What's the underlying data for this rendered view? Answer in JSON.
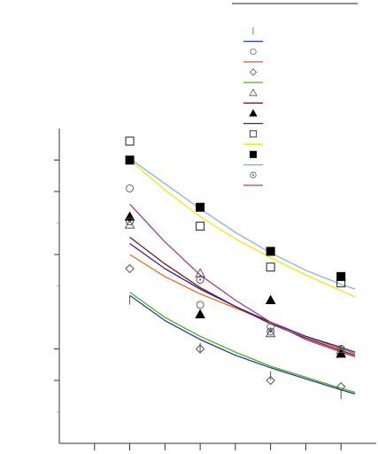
{
  "chart_data": {
    "type": "scatter",
    "title": "",
    "xlabel": "",
    "ylabel": "",
    "x_categories": [
      "",
      "",
      "",
      ""
    ],
    "xlim": [
      0,
      4.5
    ],
    "ylim": [
      0,
      10
    ],
    "grid": false,
    "legend_placement": "top-right",
    "series": [
      {
        "kind": "points",
        "marker": "vline",
        "color": "#555555",
        "points": [
          [
            1,
            4.55
          ],
          [
            2,
            3.05
          ],
          [
            3,
            2.15
          ],
          [
            4,
            1.55
          ]
        ]
      },
      {
        "kind": "fit",
        "color": "#1f3f99",
        "points": [
          [
            1,
            4.7
          ],
          [
            1.5,
            3.9
          ],
          [
            2,
            3.3
          ],
          [
            2.5,
            2.8
          ],
          [
            3,
            2.4
          ],
          [
            3.5,
            2.05
          ],
          [
            4,
            1.7
          ],
          [
            4.2,
            1.57
          ]
        ]
      },
      {
        "kind": "points",
        "marker": "circle",
        "color": "#666666",
        "points": [
          [
            1,
            8.1
          ],
          [
            2,
            4.4
          ],
          [
            3,
            3.7
          ],
          [
            4,
            3.0
          ]
        ]
      },
      {
        "kind": "fit",
        "color": "#e06b1f",
        "points": [
          [
            1,
            6.0
          ],
          [
            1.5,
            5.3
          ],
          [
            2,
            4.75
          ],
          [
            2.5,
            4.3
          ],
          [
            3,
            3.85
          ],
          [
            3.5,
            3.4
          ],
          [
            4,
            3.0
          ],
          [
            4.2,
            2.85
          ]
        ]
      },
      {
        "kind": "points",
        "marker": "diamond",
        "color": "#555555",
        "points": [
          [
            1,
            5.55
          ],
          [
            2,
            3.0
          ],
          [
            3,
            2.0
          ],
          [
            4,
            1.8
          ]
        ]
      },
      {
        "kind": "fit",
        "color": "#4cae1e",
        "points": [
          [
            1,
            4.8
          ],
          [
            1.5,
            4.0
          ],
          [
            2,
            3.4
          ],
          [
            2.5,
            2.9
          ],
          [
            3,
            2.45
          ],
          [
            3.5,
            2.1
          ],
          [
            4,
            1.75
          ],
          [
            4.2,
            1.62
          ]
        ]
      },
      {
        "kind": "points",
        "marker": "triangle",
        "color": "#555555",
        "points": [
          [
            1,
            6.95
          ],
          [
            2,
            5.4
          ],
          [
            3,
            3.5
          ],
          [
            4,
            2.95
          ]
        ]
      },
      {
        "kind": "fit",
        "color": "#6b1f1f",
        "points": [
          [
            1,
            6.55
          ],
          [
            1.5,
            5.7
          ],
          [
            2,
            4.95
          ],
          [
            2.5,
            4.35
          ],
          [
            3,
            3.8
          ],
          [
            3.5,
            3.35
          ],
          [
            4,
            2.95
          ],
          [
            4.2,
            2.8
          ]
        ]
      },
      {
        "kind": "points",
        "marker": "triangle-filled",
        "color": "#000000",
        "points": [
          [
            1,
            7.2
          ],
          [
            2,
            4.1
          ],
          [
            3,
            4.55
          ],
          [
            4,
            2.85
          ]
        ]
      },
      {
        "kind": "fit",
        "color": "#3a1f8c",
        "points": [
          [
            1,
            6.35
          ],
          [
            1.5,
            5.55
          ],
          [
            2,
            4.9
          ],
          [
            2.5,
            4.35
          ],
          [
            3,
            3.85
          ],
          [
            3.5,
            3.4
          ],
          [
            4,
            3.05
          ],
          [
            4.2,
            2.9
          ]
        ]
      },
      {
        "kind": "points",
        "marker": "square",
        "color": "#222222",
        "points": [
          [
            1,
            9.6
          ],
          [
            2,
            6.9
          ],
          [
            3,
            5.6
          ],
          [
            4,
            5.1
          ]
        ]
      },
      {
        "kind": "fit",
        "color": "#f5e21a",
        "points": [
          [
            1,
            9.0
          ],
          [
            1.5,
            8.05
          ],
          [
            2,
            7.2
          ],
          [
            2.5,
            6.5
          ],
          [
            3,
            5.9
          ],
          [
            3.5,
            5.35
          ],
          [
            4,
            4.85
          ],
          [
            4.2,
            4.65
          ]
        ]
      },
      {
        "kind": "points",
        "marker": "square-filled",
        "color": "#000000",
        "points": [
          [
            1,
            9.0
          ],
          [
            2,
            7.5
          ],
          [
            3,
            6.1
          ],
          [
            4,
            5.3
          ]
        ]
      },
      {
        "kind": "fit",
        "color": "#7ab8d9",
        "points": [
          [
            1,
            9.05
          ],
          [
            1.5,
            8.25
          ],
          [
            2,
            7.45
          ],
          [
            2.5,
            6.7
          ],
          [
            3,
            6.05
          ],
          [
            3.5,
            5.5
          ],
          [
            4,
            5.05
          ],
          [
            4.2,
            4.9
          ]
        ]
      },
      {
        "kind": "points",
        "marker": "circle-dot",
        "color": "#555555",
        "points": [
          [
            1,
            7.05
          ],
          [
            2,
            5.2
          ],
          [
            3,
            3.55
          ],
          [
            4,
            3.0
          ]
        ]
      },
      {
        "kind": "fit",
        "color": "#a33c8c",
        "points": [
          [
            1,
            7.6
          ],
          [
            1.5,
            6.4
          ],
          [
            2,
            5.35
          ],
          [
            2.5,
            4.55
          ],
          [
            3,
            3.85
          ],
          [
            3.5,
            3.3
          ],
          [
            4,
            2.9
          ],
          [
            4.2,
            2.75
          ]
        ]
      }
    ]
  }
}
